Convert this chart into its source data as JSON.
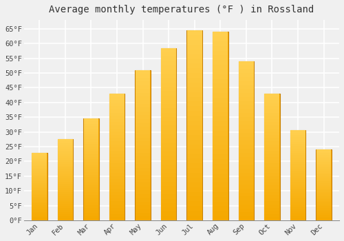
{
  "title": "Average monthly temperatures (°F ) in Rossland",
  "months": [
    "Jan",
    "Feb",
    "Mar",
    "Apr",
    "May",
    "Jun",
    "Jul",
    "Aug",
    "Sep",
    "Oct",
    "Nov",
    "Dec"
  ],
  "values": [
    23,
    27.5,
    34.5,
    43,
    51,
    58.5,
    64.5,
    64,
    54,
    43,
    30.5,
    24
  ],
  "bar_color_bottom": "#F5A800",
  "bar_color_top": "#FFD050",
  "bar_edge_color": "#C88000",
  "ylim": [
    0,
    68
  ],
  "yticks": [
    0,
    5,
    10,
    15,
    20,
    25,
    30,
    35,
    40,
    45,
    50,
    55,
    60,
    65
  ],
  "ytick_labels": [
    "0°F",
    "5°F",
    "10°F",
    "15°F",
    "20°F",
    "25°F",
    "30°F",
    "35°F",
    "40°F",
    "45°F",
    "50°F",
    "55°F",
    "60°F",
    "65°F"
  ],
  "background_color": "#f0f0f0",
  "plot_bg_color": "#f0f0f0",
  "grid_color": "#ffffff",
  "title_fontsize": 10,
  "tick_fontsize": 7.5,
  "font_family": "monospace"
}
